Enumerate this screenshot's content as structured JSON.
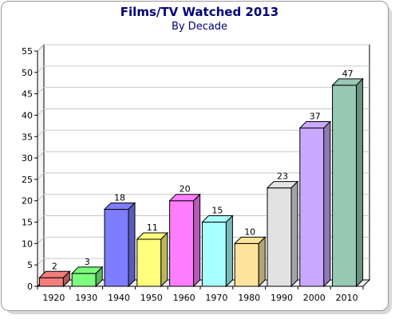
{
  "chart_data": {
    "type": "bar",
    "title": "Films/TV Watched 2013",
    "subtitle": "By Decade",
    "xlabel": "",
    "ylabel": "",
    "categories": [
      "1920",
      "1930",
      "1940",
      "1950",
      "1960",
      "1970",
      "1980",
      "1990",
      "2000",
      "2010"
    ],
    "values": [
      2,
      3,
      18,
      11,
      20,
      15,
      10,
      23,
      37,
      47
    ],
    "data_labels": [
      "2",
      "3",
      "18",
      "11",
      "20",
      "15",
      "10",
      "23",
      "37",
      "47"
    ],
    "ylim": [
      0,
      55
    ],
    "yticks": [
      0,
      5,
      10,
      15,
      20,
      25,
      30,
      35,
      40,
      45,
      50,
      55
    ],
    "ytick_labels": [
      "0",
      "5",
      "10",
      "15",
      "20",
      "25",
      "30",
      "35",
      "40",
      "45",
      "50",
      "55"
    ],
    "grid": true,
    "legend": "none",
    "bar_style": "3d",
    "colors": [
      "#f27d7d",
      "#7dff7d",
      "#7d7dff",
      "#ffff7d",
      "#ff7dff",
      "#a8ffff",
      "#ffe39a",
      "#e2e2e2",
      "#c9a8ff",
      "#98c9b3"
    ]
  }
}
